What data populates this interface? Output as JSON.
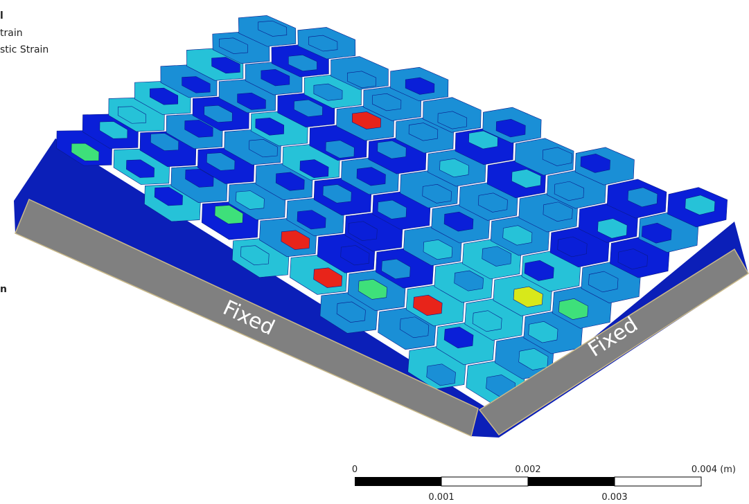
{
  "legend": {
    "title_fragment": "l",
    "lines": [
      "train",
      "stic Strain"
    ],
    "unit_fragment": "n"
  },
  "annotations": [
    "Fixed",
    "Fixed"
  ],
  "scale_bar": {
    "top_labels": [
      "0",
      "0.002",
      "0.004 (m)"
    ],
    "bottom_labels": [
      "0.001",
      "0.003"
    ]
  }
}
